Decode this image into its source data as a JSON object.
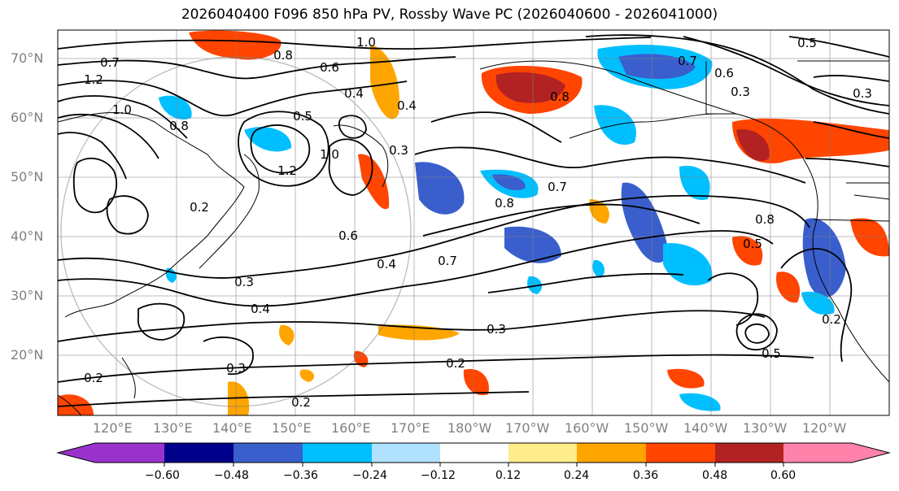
{
  "title": "2026040400 F096 850 hPa PV, Rossby Wave PC (2026040600 - 2026041000)",
  "lon_labels": [
    "120°E",
    "130°E",
    "140°E",
    "150°E",
    "160°E",
    "170°E",
    "180°W",
    "170°W",
    "160°W",
    "150°W",
    "140°W",
    "130°W",
    "120°W"
  ],
  "lat_labels": [
    "70°N",
    "60°N",
    "50°N",
    "40°N",
    "30°N",
    "20°N"
  ],
  "contour_labels": [
    "1.0",
    "0.8",
    "0.5",
    "0.7",
    "0.6",
    "0.3",
    "0.4",
    "0.7",
    "0.6",
    "0.3",
    "1.2",
    "1.0",
    "0.4",
    "0.5",
    "0.8",
    "0.8",
    "1.2",
    "1.0",
    "0.3",
    "0.8",
    "0.7",
    "0.8",
    "0.5",
    "0.4",
    "0.7",
    "0.2",
    "0.4",
    "0.3",
    "0.2",
    "0.5",
    "0.2",
    "0.3",
    "0.2",
    "0.2",
    "0.6",
    "0.3"
  ],
  "colorbar": {
    "ticks": [
      "−0.60",
      "−0.48",
      "−0.36",
      "−0.24",
      "−0.12",
      "0.12",
      "0.24",
      "0.36",
      "0.48",
      "0.60"
    ],
    "colors": [
      "#9932cc",
      "#00008b",
      "#3a5fcd",
      "#00bfff",
      "#b0e2ff",
      "#ffffff",
      "#ffec8b",
      "#ffa500",
      "#ff4500",
      "#b22222",
      "#ff82ab"
    ]
  },
  "colors": {
    "strong_negative": "#3a5fcd",
    "negative": "#00bfff",
    "positive": "#ffa500",
    "strong_positive": "#ff4500",
    "contour": "#000000",
    "grid": "#808080"
  }
}
